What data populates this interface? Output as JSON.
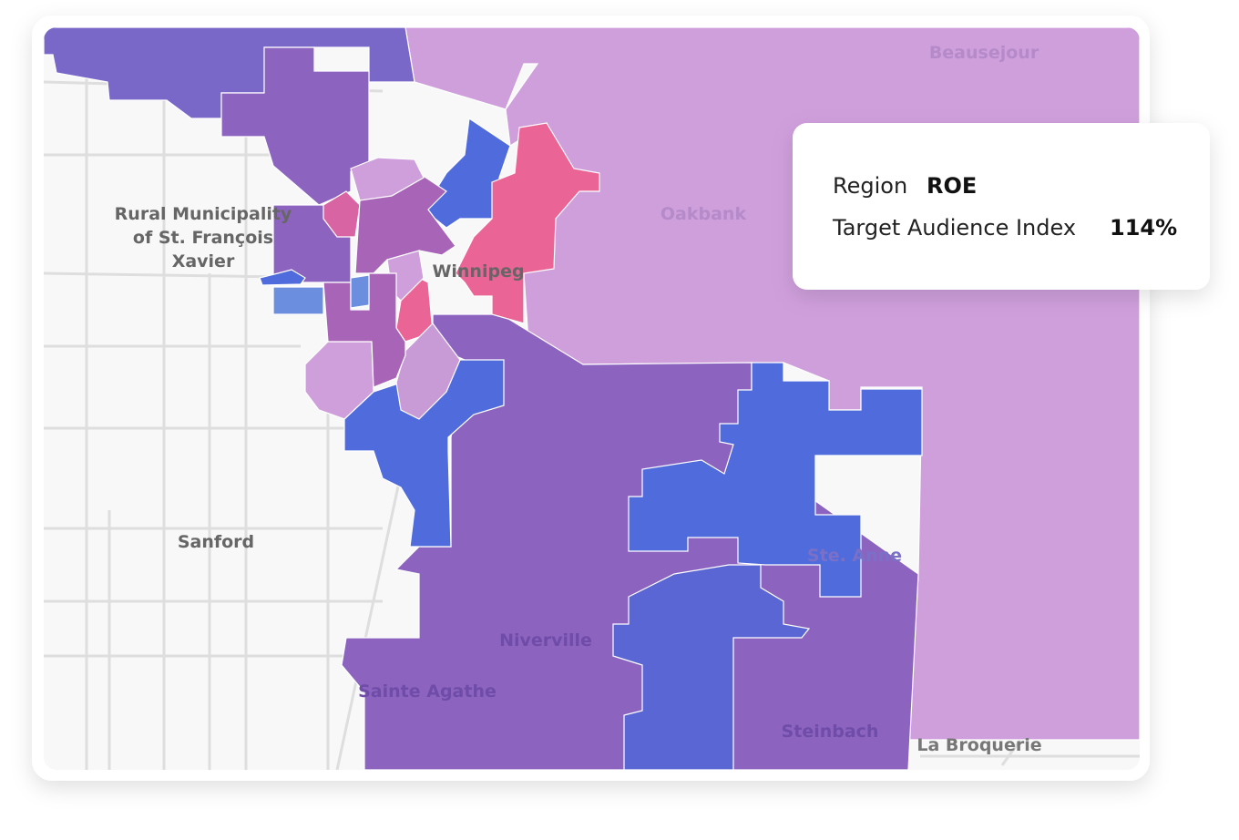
{
  "map": {
    "labels": [
      {
        "text": [
          "Rural Municipality",
          "of St. François",
          "Xavier"
        ]
      },
      {
        "text": [
          "Winnipeg"
        ]
      },
      {
        "text": [
          "Oakbank"
        ]
      },
      {
        "text": [
          "Beausejour"
        ]
      },
      {
        "text": [
          "Sanford"
        ]
      },
      {
        "text": [
          "Ste. Anne"
        ]
      },
      {
        "text": [
          "Niverville"
        ]
      },
      {
        "text": [
          "Sainte Agathe"
        ]
      },
      {
        "text": [
          "Steinbach"
        ]
      },
      {
        "text": [
          "La Broquerie"
        ]
      }
    ]
  },
  "tooltip": {
    "region_label": "Region",
    "region": "ROE",
    "metric_label": "Target Audience Index",
    "metric": "114%"
  }
}
